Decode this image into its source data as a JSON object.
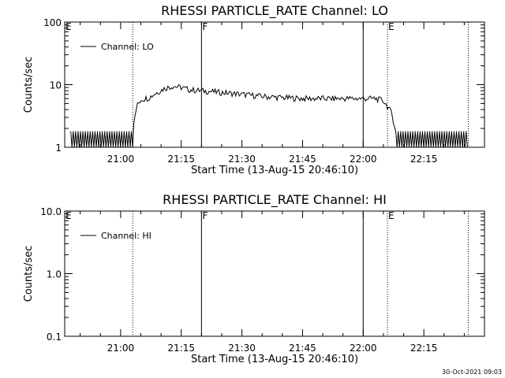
{
  "footer_timestamp": "30-Oct-2021 09:03",
  "chart_data": [
    {
      "type": "line",
      "title": "RHESSI PARTICLE_RATE Channel: LO",
      "xlabel": "Start Time (13-Aug-15 20:46:10)",
      "ylabel": "Counts/sec",
      "yscale": "log",
      "ylim": [
        1,
        100
      ],
      "y_ticks": [
        "1",
        "10",
        "100"
      ],
      "x_ticks": [
        "21:00",
        "21:15",
        "21:30",
        "21:45",
        "22:00",
        "22:15"
      ],
      "legend": {
        "entries": [
          "Channel: LO"
        ],
        "placement": "top-left"
      },
      "markers": [
        {
          "label": "E",
          "time": "20:46",
          "style": "dotted"
        },
        {
          "label": "",
          "time": "21:03",
          "style": "dotted"
        },
        {
          "label": "F",
          "time": "21:20",
          "style": "solid"
        },
        {
          "label": "",
          "time": "22:00",
          "style": "solid"
        },
        {
          "label": "E",
          "time": "22:06",
          "style": "dotted"
        },
        {
          "label": "",
          "time": "22:26",
          "style": "dotted"
        }
      ],
      "series": [
        {
          "name": "Channel: LO",
          "x": [
            "20:46",
            "20:50",
            "20:54",
            "20:58",
            "21:01",
            "21:03",
            "21:04",
            "21:05",
            "21:07",
            "21:09",
            "21:11",
            "21:13",
            "21:15",
            "21:17",
            "21:20",
            "21:25",
            "21:30",
            "21:35",
            "21:40",
            "21:45",
            "21:50",
            "21:55",
            "22:00",
            "22:03",
            "22:05",
            "22:07",
            "22:08",
            "22:09",
            "22:10",
            "22:13",
            "22:17",
            "22:20",
            "22:24",
            "22:26"
          ],
          "y": [
            1.5,
            1.5,
            1.5,
            1.5,
            1.5,
            1.5,
            4.5,
            5.8,
            6.2,
            7.5,
            8.8,
            9.5,
            9.0,
            8.3,
            8.0,
            7.5,
            7.0,
            6.5,
            6.2,
            6.0,
            6.0,
            6.0,
            6.0,
            6.0,
            5.5,
            3.5,
            1.8,
            1.0,
            1.5,
            1.5,
            1.5,
            1.5,
            1.2,
            1.5
          ]
        }
      ]
    },
    {
      "type": "line",
      "title": "RHESSI PARTICLE_RATE Channel: HI",
      "xlabel": "Start Time (13-Aug-15 20:46:10)",
      "ylabel": "Counts/sec",
      "yscale": "log",
      "ylim": [
        0.1,
        10
      ],
      "y_ticks": [
        "0.1",
        "1.0",
        "10.0"
      ],
      "x_ticks": [
        "21:00",
        "21:15",
        "21:30",
        "21:45",
        "22:00",
        "22:15"
      ],
      "legend": {
        "entries": [
          "Channel: HI"
        ],
        "placement": "top-left"
      },
      "markers": [
        {
          "label": "E",
          "time": "20:46",
          "style": "dotted"
        },
        {
          "label": "",
          "time": "21:03",
          "style": "dotted"
        },
        {
          "label": "F",
          "time": "21:20",
          "style": "solid"
        },
        {
          "label": "",
          "time": "22:00",
          "style": "solid"
        },
        {
          "label": "E",
          "time": "22:06",
          "style": "dotted"
        },
        {
          "label": "",
          "time": "22:26",
          "style": "dotted"
        }
      ],
      "series": [
        {
          "name": "Channel: HI",
          "x": [],
          "y": []
        }
      ]
    }
  ]
}
